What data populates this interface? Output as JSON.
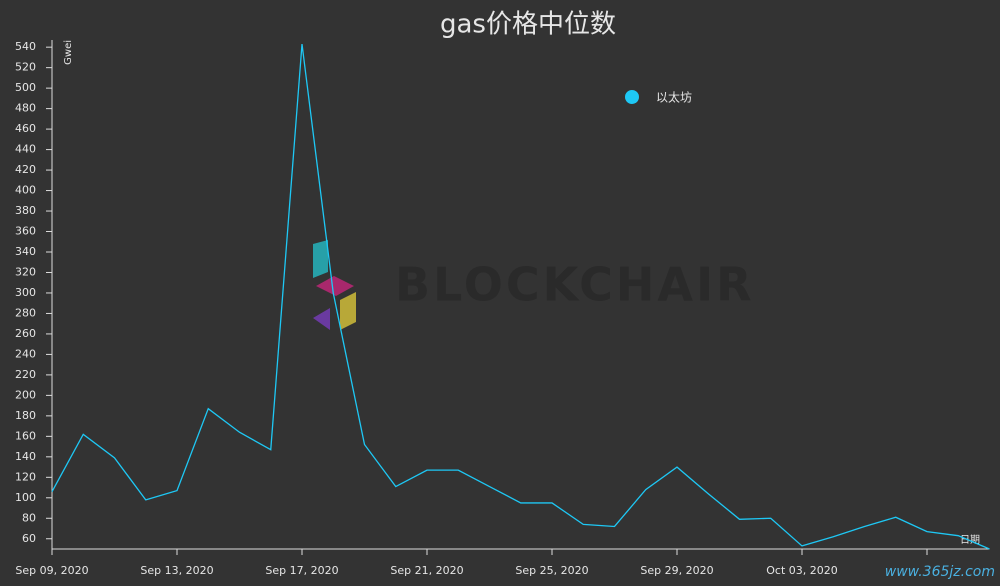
{
  "chart_data": {
    "type": "line",
    "title": "gas价格中位数",
    "y_label": "Gwei",
    "x_label": "日期",
    "watermark": "BLOCKCHAIR",
    "site_mark": "www.365jz.com",
    "categories": [
      "Sep 09, 2020",
      null,
      null,
      null,
      "Sep 13, 2020",
      null,
      null,
      null,
      "Sep 17, 2020",
      null,
      null,
      null,
      "Sep 21, 2020",
      null,
      null,
      null,
      "Sep 25, 2020",
      null,
      null,
      null,
      "Sep 29, 2020",
      null,
      null,
      null,
      "Oct 03, 2020",
      null,
      null,
      null,
      null,
      null,
      null
    ],
    "series": [
      {
        "name": "以太坊",
        "color": "#1ec8f5",
        "values": [
          106,
          162,
          139,
          98,
          107,
          187,
          164,
          147,
          543,
          300,
          152,
          111,
          127,
          127,
          111,
          95,
          95,
          74,
          72,
          108,
          130,
          104,
          79,
          80,
          53,
          62,
          72,
          81,
          67,
          63,
          50
        ]
      }
    ],
    "ylim": [
      50,
      547
    ],
    "yticks": [
      60,
      80,
      100,
      120,
      140,
      160,
      180,
      200,
      220,
      240,
      260,
      280,
      300,
      320,
      340,
      360,
      380,
      400,
      420,
      440,
      460,
      480,
      500,
      520,
      540
    ],
    "legend": "top-right"
  }
}
